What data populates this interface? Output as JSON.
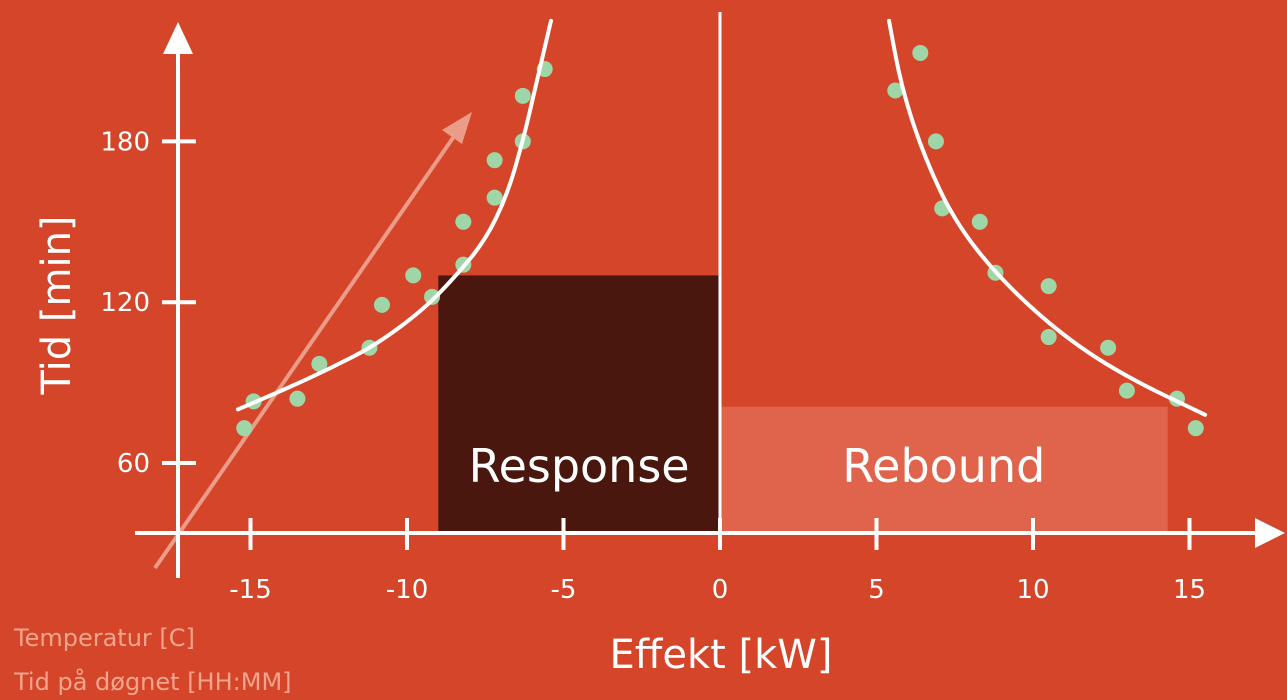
{
  "chart_data": {
    "type": "scatter",
    "title": "",
    "xlabel": "Effekt [kW]",
    "ylabel": "Tid [min]",
    "xlim": [
      -17.5,
      17.5
    ],
    "ylim": [
      33,
      225
    ],
    "x_ticks": [
      -15,
      -10,
      -5,
      0,
      5,
      10,
      15
    ],
    "x_tick_labels": [
      "-15",
      "-10",
      "-5",
      "0",
      "5",
      "10",
      "15"
    ],
    "y_ticks": [
      60,
      120,
      180
    ],
    "y_tick_labels": [
      "60",
      "120",
      "180"
    ],
    "grid": false,
    "regions": [
      {
        "label": "Response",
        "x": [
          -9,
          0
        ],
        "y": [
          33,
          130
        ],
        "color": "#4a170f"
      },
      {
        "label": "Rebound",
        "x": [
          0,
          14.3
        ],
        "y": [
          33,
          81
        ],
        "color": "#e0644c"
      }
    ],
    "series": [
      {
        "type": "scatter",
        "color": "#9fd6a8",
        "points": [
          [
            -15.2,
            73
          ],
          [
            -14.9,
            83
          ],
          [
            -13.5,
            84
          ],
          [
            -12.8,
            97
          ],
          [
            -11.2,
            103
          ],
          [
            -10.8,
            119
          ],
          [
            -9.8,
            130
          ],
          [
            -9.2,
            122
          ],
          [
            -8.2,
            134
          ],
          [
            -8.2,
            150
          ],
          [
            -7.2,
            159
          ],
          [
            -7.2,
            173
          ],
          [
            -6.3,
            180
          ],
          [
            -6.3,
            197
          ],
          [
            -5.6,
            207
          ]
        ]
      },
      {
        "type": "line",
        "color": "#ffffff",
        "points": [
          [
            -15.4,
            80
          ],
          [
            -14,
            87
          ],
          [
            -12.5,
            95
          ],
          [
            -11,
            104
          ],
          [
            -9.5,
            117
          ],
          [
            -8.5,
            129
          ],
          [
            -7.5,
            143
          ],
          [
            -6.8,
            160
          ],
          [
            -6.3,
            180
          ],
          [
            -5.9,
            200
          ],
          [
            -5.4,
            225
          ]
        ]
      },
      {
        "type": "scatter",
        "color": "#9fd6a8",
        "points": [
          [
            5.6,
            199
          ],
          [
            6.4,
            213
          ],
          [
            6.9,
            180
          ],
          [
            7.1,
            155
          ],
          [
            8.3,
            150
          ],
          [
            8.8,
            131
          ],
          [
            10.5,
            126
          ],
          [
            10.5,
            107
          ],
          [
            12.4,
            103
          ],
          [
            13.0,
            87
          ],
          [
            14.6,
            84
          ],
          [
            15.2,
            73
          ]
        ]
      },
      {
        "type": "line",
        "color": "#ffffff",
        "points": [
          [
            5.4,
            225
          ],
          [
            5.8,
            200
          ],
          [
            6.5,
            175
          ],
          [
            7.5,
            150
          ],
          [
            9,
            128
          ],
          [
            11,
            107
          ],
          [
            13,
            92
          ],
          [
            15.5,
            78
          ]
        ]
      }
    ],
    "legend": {
      "placement": "bottom-left",
      "entries": [
        "Temperatur [C]",
        "Tid på døgnet [HH:MM]"
      ]
    }
  }
}
